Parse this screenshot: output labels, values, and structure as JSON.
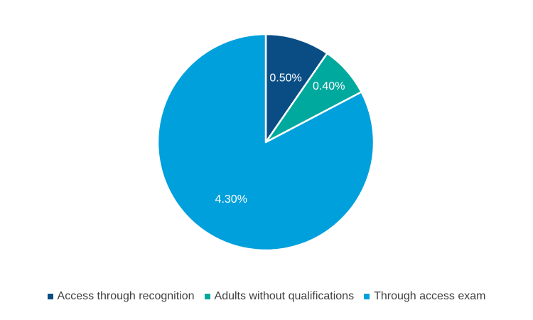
{
  "chart_data": {
    "type": "pie",
    "categories": [
      "Access through recognition",
      "Adults without qualifications",
      "Through access exam"
    ],
    "values": [
      0.5,
      0.4,
      4.3
    ],
    "data_labels": [
      "0.50%",
      "0.40%",
      "4.30%"
    ],
    "colors": [
      "#0a4d85",
      "#00a99d",
      "#00a0dc"
    ],
    "legend_position": "bottom",
    "title": ""
  },
  "legend": {
    "items": [
      {
        "label": "Access through recognition",
        "color": "#0a4d85"
      },
      {
        "label": "Adults without qualifications",
        "color": "#00a99d"
      },
      {
        "label": "Through access exam",
        "color": "#00a0dc"
      }
    ]
  }
}
